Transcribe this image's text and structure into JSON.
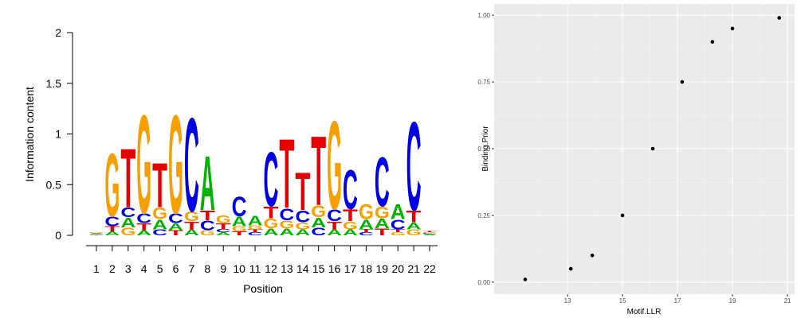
{
  "chart_data": [
    {
      "type": "logo",
      "x_label": "Position",
      "y_label": "Information content",
      "categories": [
        "1",
        "2",
        "3",
        "4",
        "5",
        "6",
        "7",
        "8",
        "9",
        "10",
        "11",
        "12",
        "13",
        "14",
        "15",
        "16",
        "17",
        "18",
        "19",
        "20",
        "21",
        "22"
      ],
      "ylim": [
        0,
        2
      ],
      "yticks": [
        0,
        0.5,
        1,
        1.5,
        2
      ],
      "series": [
        {
          "name": "A",
          "color": "#00b300",
          "values": [
            0.01,
            0.04,
            0.1,
            0.05,
            0.1,
            0.07,
            0.06,
            0.55,
            0.03,
            0.1,
            0.1,
            0.07,
            0.07,
            0.06,
            0.1,
            0.06,
            0.06,
            0.1,
            0.1,
            0.15,
            0.07,
            0.01
          ]
        },
        {
          "name": "C",
          "color": "#0000e6",
          "values": [
            0.005,
            0.1,
            0.1,
            0.1,
            0.06,
            0.1,
            0.95,
            0.1,
            0.03,
            0.2,
            0.03,
            0.55,
            0.12,
            0.12,
            0.08,
            0.12,
            0.4,
            0.03,
            0.5,
            0.1,
            0.9,
            0.01
          ]
        },
        {
          "name": "G",
          "color": "#f5a000",
          "values": [
            0.01,
            0.64,
            0.08,
            1.0,
            0.12,
            1.0,
            0.1,
            0.05,
            0.08,
            0.05,
            0.04,
            0.1,
            0.08,
            0.07,
            0.12,
            0.9,
            0.08,
            0.15,
            0.12,
            0.03,
            0.06,
            0.01
          ]
        },
        {
          "name": "T",
          "color": "#e60000",
          "values": [
            0.005,
            0.05,
            0.6,
            0.07,
            0.45,
            0.05,
            0.08,
            0.1,
            0.06,
            0.04,
            0.03,
            0.12,
            0.7,
            0.38,
            0.7,
            0.08,
            0.12,
            0.03,
            0.07,
            0.03,
            0.12,
            0.01
          ]
        }
      ]
    },
    {
      "type": "scatter",
      "x_label": "Motif.LLR",
      "y_label": "Binding.Prior",
      "x": [
        11.46,
        13.12,
        13.9,
        15.0,
        16.1,
        17.17,
        18.27,
        19.0,
        20.7
      ],
      "values": [
        0.01,
        0.05,
        0.1,
        0.25,
        0.5,
        0.75,
        0.9,
        0.95,
        0.99
      ],
      "color": "#000000",
      "grid": true,
      "xlim": [
        10.33,
        21.26
      ],
      "xticks": [
        13,
        15,
        17,
        19,
        21
      ],
      "ylim": [
        -0.045,
        1.042
      ],
      "yticks": [
        {
          "value": 0,
          "label": "0.00"
        },
        {
          "value": 0.25,
          "label": "0.25"
        },
        {
          "value": 0.5,
          "label": "0.50"
        },
        {
          "value": 0.75,
          "label": "0.75"
        },
        {
          "value": 1,
          "label": "1.00"
        }
      ]
    }
  ]
}
